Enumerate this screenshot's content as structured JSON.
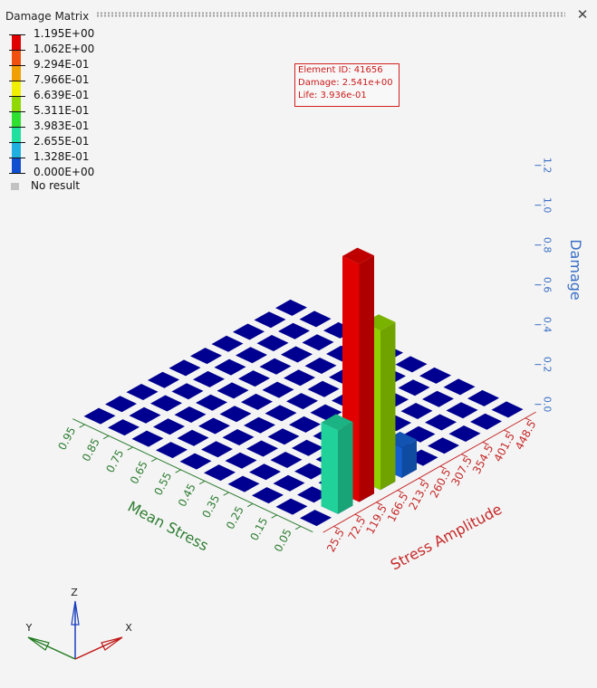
{
  "window": {
    "title": "Damage Matrix",
    "close_glyph": "✕"
  },
  "legend": {
    "entries": [
      {
        "label": "1.195E+00",
        "color": "#e00000"
      },
      {
        "label": "1.062E+00",
        "color": "#f05010"
      },
      {
        "label": "9.294E-01",
        "color": "#f0a000"
      },
      {
        "label": "7.966E-01",
        "color": "#f0f000"
      },
      {
        "label": "6.639E-01",
        "color": "#90d800"
      },
      {
        "label": "5.311E-01",
        "color": "#30e030"
      },
      {
        "label": "3.983E-01",
        "color": "#20e0a0"
      },
      {
        "label": "2.655E-01",
        "color": "#20b0e0"
      },
      {
        "label": "1.328E-01",
        "color": "#1050d0"
      },
      {
        "label": "0.000E+00",
        "color": "#0000b0"
      }
    ],
    "no_result_label": "No result",
    "no_result_color": "#c2c2c2"
  },
  "tooltip": {
    "line1": "Element ID: 41656",
    "line2": "Damage: 2.541e+00",
    "line3": "Life: 3.936e-01",
    "color": "#d32020"
  },
  "triad": {
    "z": "Z",
    "y": "Y",
    "x": "X"
  },
  "chart_data": {
    "type": "bar3d",
    "zlabel": "Damage",
    "xlabel": "Stress Amplitude",
    "ylabel": "Mean Stress",
    "x_ticks": [
      "25.5",
      "72.5",
      "119.5",
      "166.5",
      "213.5",
      "260.5",
      "307.5",
      "354.5",
      "401.5",
      "448.5"
    ],
    "y_ticks": [
      "0.05",
      "0.15",
      "0.25",
      "0.35",
      "0.45",
      "0.55",
      "0.65",
      "0.75",
      "0.85",
      "0.95"
    ],
    "z_ticks": [
      "0.0",
      "0.2",
      "0.4",
      "0.6",
      "0.8",
      "1.0",
      "1.2"
    ],
    "zlim": [
      0,
      1.2
    ],
    "colors": {
      "x_axis": "#c62828",
      "y_axis": "#2e7d32",
      "z_axis": "#3a6fc4",
      "base": "#000090"
    },
    "bars": [
      {
        "x": "72.5",
        "y": "0.05",
        "value": 0.42,
        "color": "#20d29a"
      },
      {
        "x": "119.5",
        "y": "0.05",
        "value": 1.195,
        "color": "#e00000"
      },
      {
        "x": "166.5",
        "y": "0.05",
        "value": 0.8,
        "color": "#8fd100"
      },
      {
        "x": "213.5",
        "y": "0.05",
        "value": 0.15,
        "color": "#1560d0"
      }
    ]
  }
}
